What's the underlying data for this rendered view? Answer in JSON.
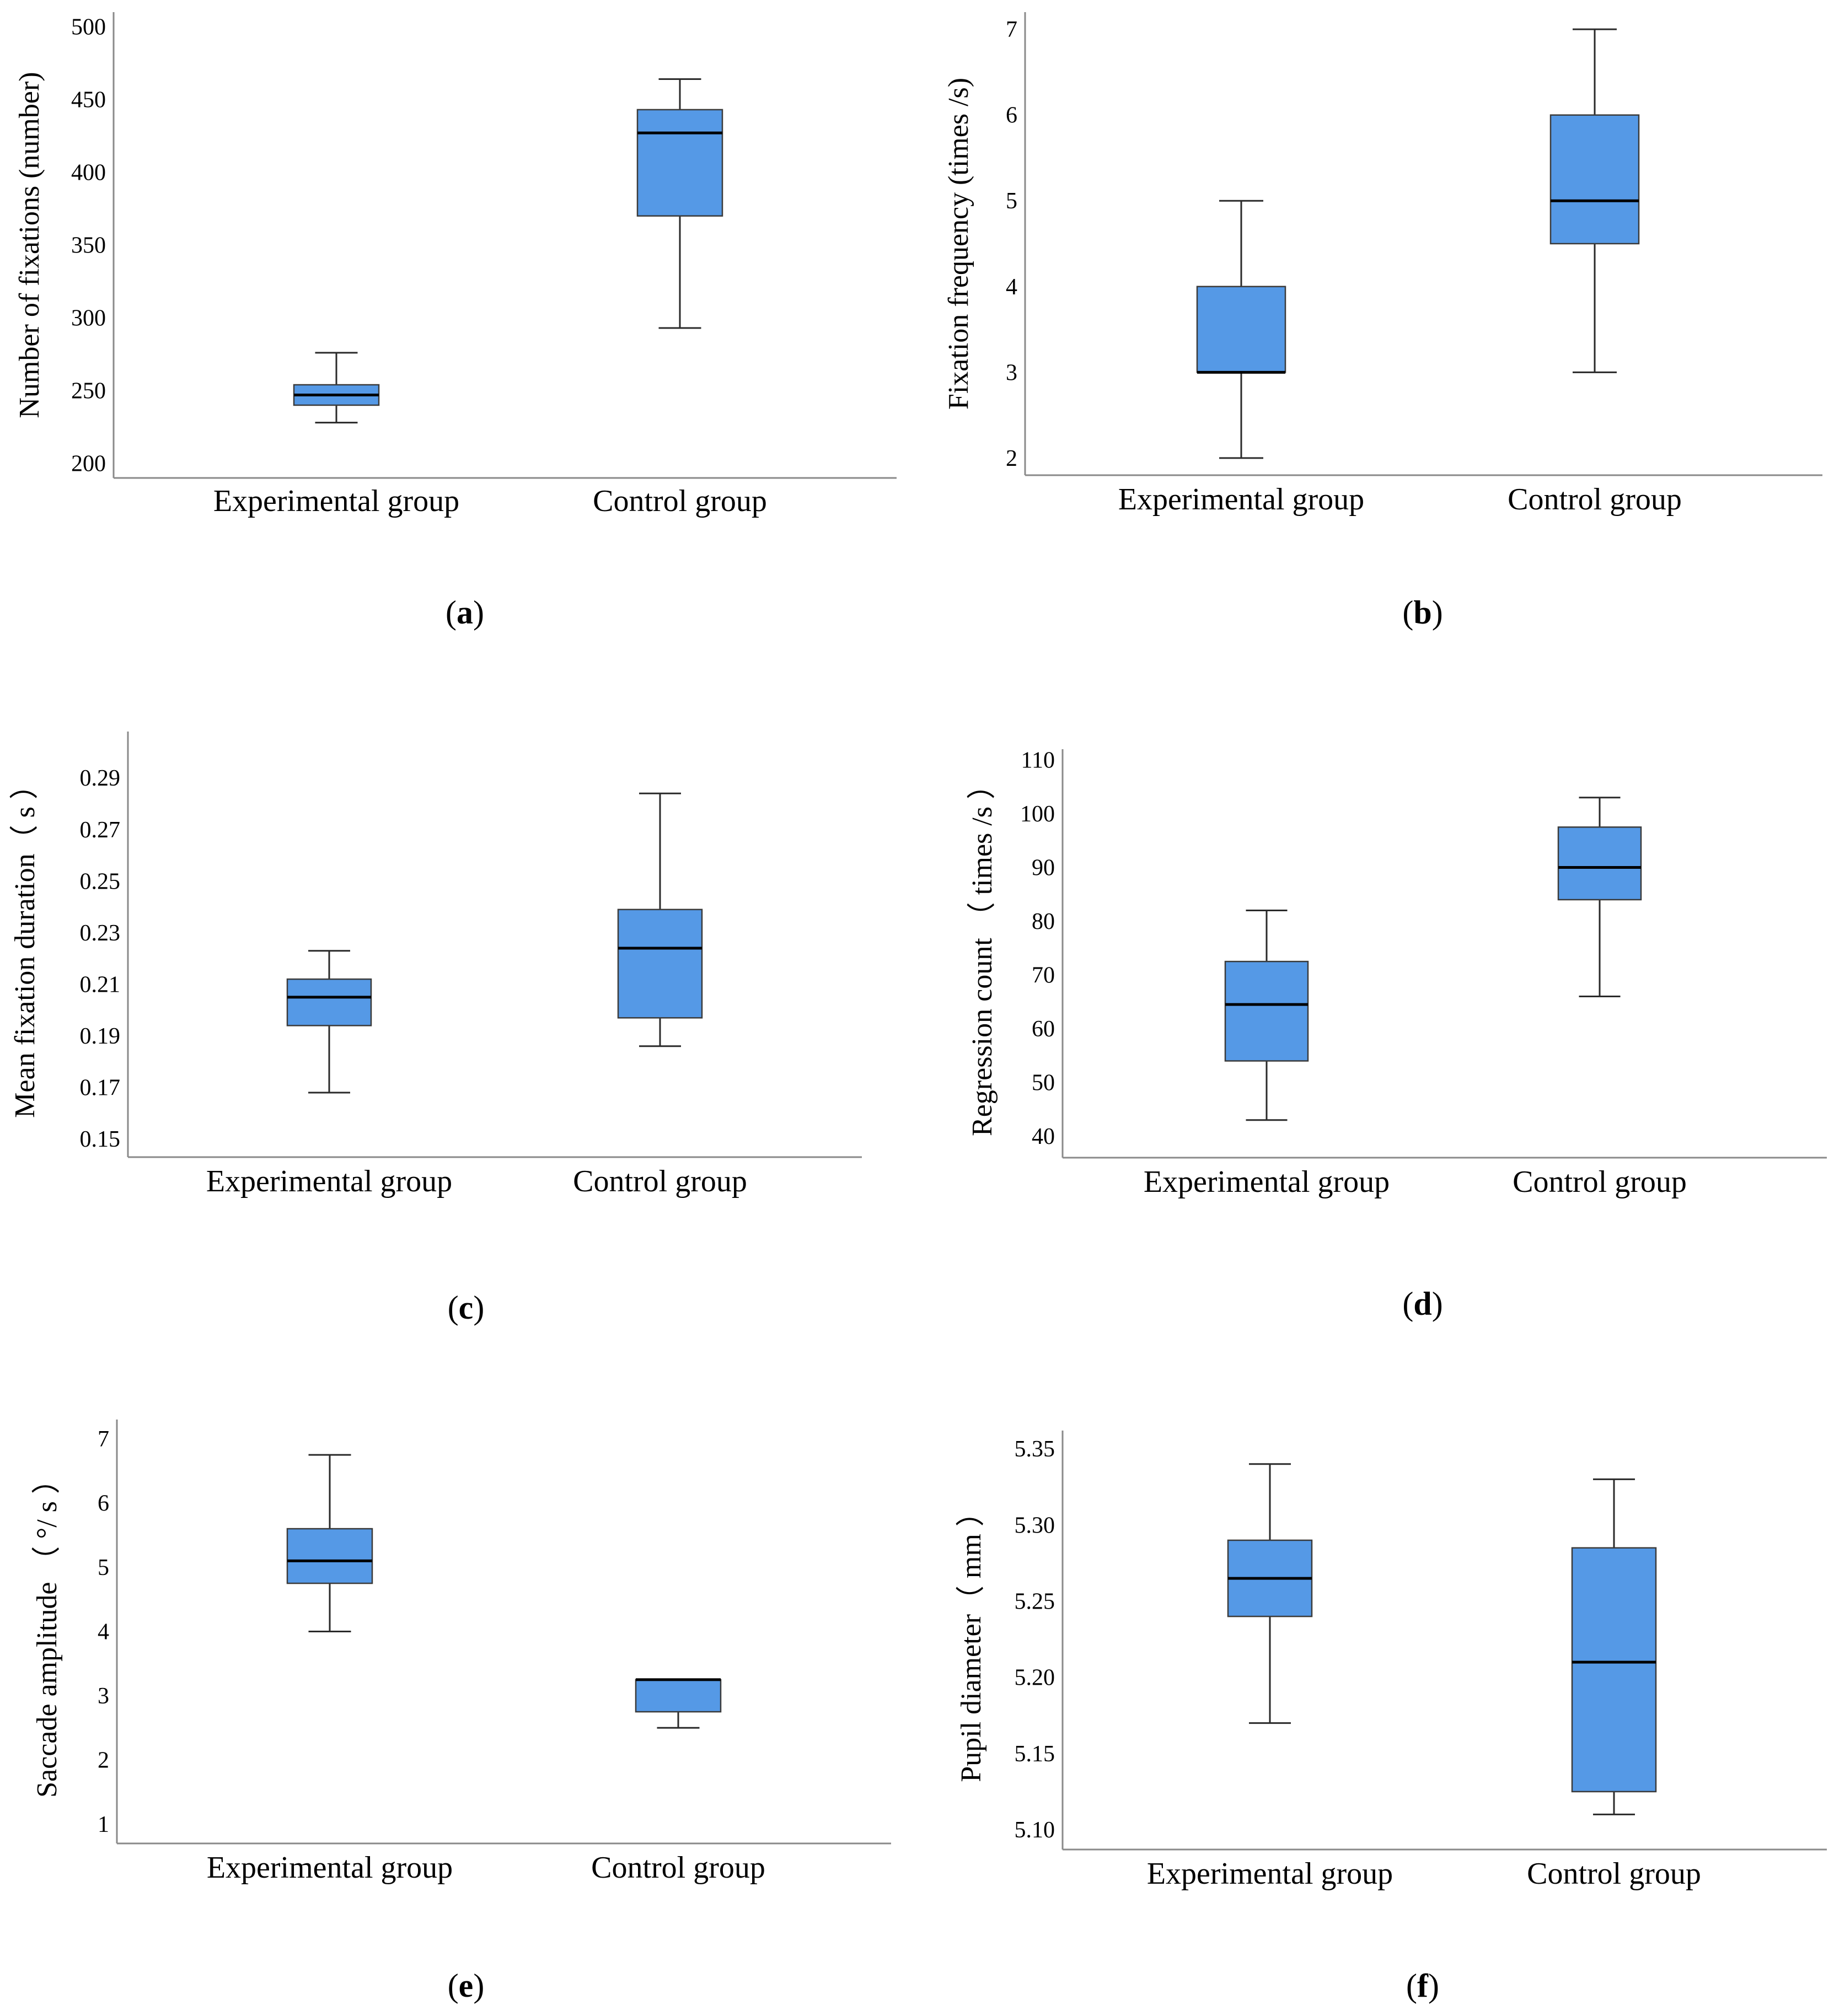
{
  "figure": {
    "colors": {
      "box_fill": "#5599E6",
      "box_stroke": "#3b3b3b",
      "axis": "#8a8a8a",
      "whisker": "#2a2a2a",
      "median": "#000000"
    }
  },
  "chart_data": [
    {
      "id": "a",
      "type": "box",
      "caption_letter": "a",
      "ylabel": "Number of fixations (number)",
      "categories": [
        "Experimental group",
        "Control group"
      ],
      "yticks": [
        "200",
        "250",
        "300",
        "350",
        "400",
        "450",
        "500"
      ],
      "ylim": [
        190,
        510
      ],
      "boxes": [
        {
          "category": "Experimental group",
          "min": 228,
          "q1": 240,
          "median": 247,
          "q3": 254,
          "max": 276
        },
        {
          "category": "Control group",
          "min": 293,
          "q1": 370,
          "median": 427,
          "q3": 443,
          "max": 464
        }
      ]
    },
    {
      "id": "b",
      "type": "box",
      "caption_letter": "b",
      "ylabel": "Fixation frequency (times /s)",
      "categories": [
        "Experimental group",
        "Control group"
      ],
      "yticks": [
        "2",
        "3",
        "4",
        "5",
        "6",
        "7"
      ],
      "ylim": [
        1.8,
        7.2
      ],
      "boxes": [
        {
          "category": "Experimental group",
          "min": 2,
          "q1": 3,
          "median": 3,
          "q3": 4,
          "max": 5
        },
        {
          "category": "Control group",
          "min": 3,
          "q1": 4.5,
          "median": 5,
          "q3": 6,
          "max": 7
        }
      ]
    },
    {
      "id": "c",
      "type": "box",
      "caption_letter": "c",
      "ylabel": "Mean fixation duration（ s ）",
      "categories": [
        "Experimental group",
        "Control group"
      ],
      "yticks": [
        "0.15",
        "0.17",
        "0.19",
        "0.21",
        "0.23",
        "0.25",
        "0.27",
        "0.29"
      ],
      "ylim": [
        0.143,
        0.308
      ],
      "boxes": [
        {
          "category": "Experimental group",
          "min": 0.168,
          "q1": 0.194,
          "median": 0.205,
          "q3": 0.212,
          "max": 0.223
        },
        {
          "category": "Control group",
          "min": 0.186,
          "q1": 0.197,
          "median": 0.224,
          "q3": 0.239,
          "max": 0.284
        }
      ]
    },
    {
      "id": "d",
      "type": "box",
      "caption_letter": "d",
      "ylabel": "Regression count （ times /s ）",
      "categories": [
        "Experimental group",
        "Control group"
      ],
      "yticks": [
        "40",
        "50",
        "60",
        "70",
        "80",
        "90",
        "100",
        "110"
      ],
      "ylim": [
        36,
        112
      ],
      "boxes": [
        {
          "category": "Experimental group",
          "min": 43,
          "q1": 54,
          "median": 64.5,
          "q3": 72.5,
          "max": 82
        },
        {
          "category": "Control group",
          "min": 66,
          "q1": 84,
          "median": 90,
          "q3": 97.5,
          "max": 103
        }
      ]
    },
    {
      "id": "e",
      "type": "box",
      "caption_letter": "e",
      "ylabel": "Saccade amplitude （ °/ s ）",
      "categories": [
        "Experimental group",
        "Control group"
      ],
      "yticks": [
        "1",
        "2",
        "3",
        "4",
        "5",
        "6",
        "7"
      ],
      "ylim": [
        0.7,
        7.3
      ],
      "boxes": [
        {
          "category": "Experimental group",
          "min": 4.0,
          "q1": 4.75,
          "median": 5.1,
          "q3": 5.6,
          "max": 6.75
        },
        {
          "category": "Control group",
          "min": 2.5,
          "q1": 2.75,
          "median": 3.25,
          "q3": 3.25,
          "max": 3.25
        }
      ]
    },
    {
      "id": "f",
      "type": "box",
      "caption_letter": "f",
      "ylabel": "Pupil diameter（ mm ）",
      "categories": [
        "Experimental group",
        "Control group"
      ],
      "yticks": [
        "5.10",
        "5.15",
        "5.20",
        "5.25",
        "5.30",
        "5.35"
      ],
      "ylim": [
        5.087,
        5.362
      ],
      "boxes": [
        {
          "category": "Experimental group",
          "min": 5.17,
          "q1": 5.24,
          "median": 5.265,
          "q3": 5.29,
          "max": 5.34
        },
        {
          "category": "Control group",
          "min": 5.11,
          "q1": 5.125,
          "median": 5.21,
          "q3": 5.285,
          "max": 5.33
        }
      ]
    }
  ]
}
